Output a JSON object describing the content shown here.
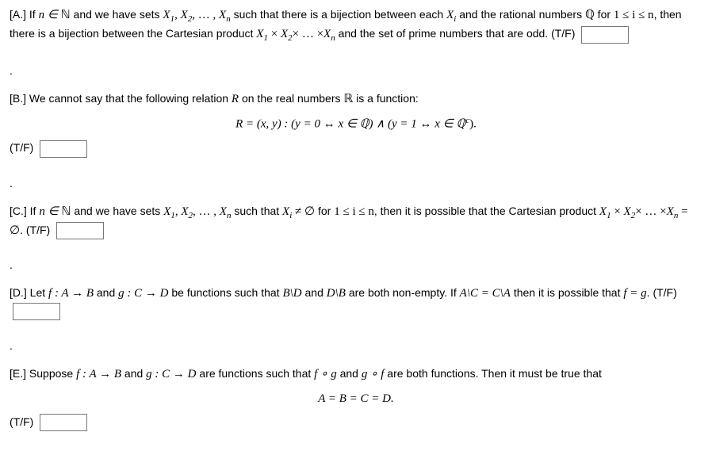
{
  "questions": {
    "a": {
      "label": "[A.]",
      "text_pre": "If ",
      "nN": "n ∈ ",
      "N": "ℕ",
      "text_mid1": " and we have sets ",
      "sets": "X",
      "sub1": "1",
      "comma1": ", ",
      "sub2": "2",
      "comma2": ", … , ",
      "subn": "n",
      "text_mid2": " such that there is a bijection between each ",
      "Xi": "X",
      "subi": "i",
      "text_mid3": " and the rational numbers ",
      "Q": "ℚ",
      "text_mid4": " for ",
      "ineq": "1 ≤ i ≤ n",
      "text_end1": ", then there is a bijection between the Cartesian product ",
      "prod": "X",
      "times": " × ",
      "dots": "× … ×",
      "text_end2": " and the set of prime numbers that are odd. (T/F)"
    },
    "b": {
      "label": "[B.]",
      "text1": " We cannot say that the following relation ",
      "R": "R",
      "text2": " on the real numbers ",
      "RR": "ℝ",
      "text3": " is a function:",
      "formula": "R = (x, y) : (y = 0 ↔ x ∈ ℚ) ∧ (y = 1 ↔ x ∈ ℚ",
      "supc": "c",
      "formula_end": ").",
      "tf": "(T/F)"
    },
    "c": {
      "label": "[C.]",
      "text1": " If ",
      "nN": "n ∈ ",
      "N": "ℕ",
      "text2": " and we have sets ",
      "text3": " such that ",
      "neq": " ≠ ∅",
      "text4": " for ",
      "ineq": "1 ≤ i ≤ n",
      "text5": ", then it is possible that the Cartesian product ",
      "eq_empty": " = ∅",
      "text6": ". (T/F)"
    },
    "d": {
      "label": "[D.]",
      "text1": " Let ",
      "f": "f : A → B",
      "text2": " and ",
      "g": "g : C → D",
      "text3": " be functions such that ",
      "BD": "B\\D",
      "text4": " and ",
      "DB": "D\\B",
      "text5": " are both non-empty. If ",
      "AC": "A\\C = C\\A",
      "text6": " then it is possible that ",
      "fg": "f = g",
      "text7": ". (T/F)"
    },
    "e": {
      "label": "[E.]",
      "text1": " Suppose ",
      "f": "f : A → B",
      "text2": " and ",
      "g": "g : C → D",
      "text3": " are functions such that ",
      "fog": "f ∘ g",
      "text4": " and ",
      "gof": "g ∘ f",
      "text5": " are both functions. Then it must be true that",
      "formula": "A = B = C = D.",
      "tf": "(T/F)"
    }
  }
}
